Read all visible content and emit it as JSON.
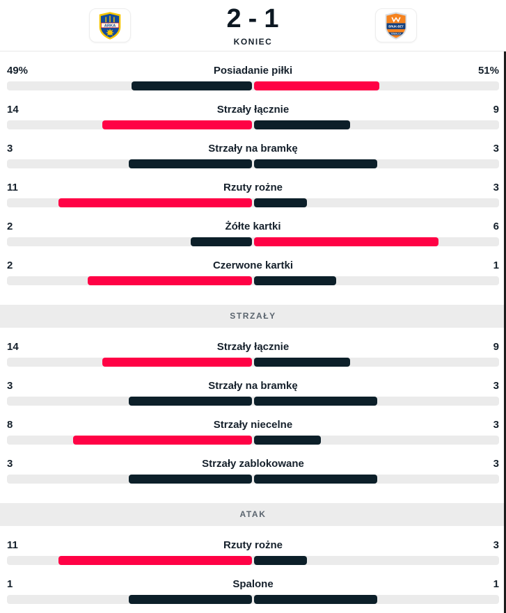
{
  "colors": {
    "accent": "#ff0245",
    "dark": "#0c1f29",
    "track": "#ebebeb",
    "band_bg": "#ececec",
    "band_text": "#5a646e",
    "text": "#15202b",
    "divider": "#e8e8e8",
    "scrollbar": "#1c1c1c"
  },
  "header": {
    "home_team": {
      "crest_text": "ARKA"
    },
    "away_team": {
      "crest_text": "BRUK-BET",
      "crest_subtext": "TERMALICA"
    },
    "score": {
      "home": "2",
      "separator": "-",
      "away": "1"
    },
    "status": "KONIEC"
  },
  "sections": [
    {
      "header": null,
      "rows": [
        {
          "label": "Posiadanie piłki",
          "home": 49,
          "away": 51,
          "home_display": "49%",
          "away_display": "51%"
        },
        {
          "label": "Strzały łącznie",
          "home": 14,
          "away": 9,
          "home_display": "14",
          "away_display": "9"
        },
        {
          "label": "Strzały na bramkę",
          "home": 3,
          "away": 3,
          "home_display": "3",
          "away_display": "3"
        },
        {
          "label": "Rzuty rożne",
          "home": 11,
          "away": 3,
          "home_display": "11",
          "away_display": "3"
        },
        {
          "label": "Żółte kartki",
          "home": 2,
          "away": 6,
          "home_display": "2",
          "away_display": "6"
        },
        {
          "label": "Czerwone kartki",
          "home": 2,
          "away": 1,
          "home_display": "2",
          "away_display": "1"
        }
      ]
    },
    {
      "header": "STRZAŁY",
      "rows": [
        {
          "label": "Strzały łącznie",
          "home": 14,
          "away": 9,
          "home_display": "14",
          "away_display": "9"
        },
        {
          "label": "Strzały na bramkę",
          "home": 3,
          "away": 3,
          "home_display": "3",
          "away_display": "3"
        },
        {
          "label": "Strzały niecelne",
          "home": 8,
          "away": 3,
          "home_display": "8",
          "away_display": "3"
        },
        {
          "label": "Strzały zablokowane",
          "home": 3,
          "away": 3,
          "home_display": "3",
          "away_display": "3"
        }
      ]
    },
    {
      "header": "ATAK",
      "rows": [
        {
          "label": "Rzuty rożne",
          "home": 11,
          "away": 3,
          "home_display": "11",
          "away_display": "3"
        },
        {
          "label": "Spalone",
          "home": 1,
          "away": 1,
          "home_display": "1",
          "away_display": "1"
        }
      ]
    }
  ]
}
